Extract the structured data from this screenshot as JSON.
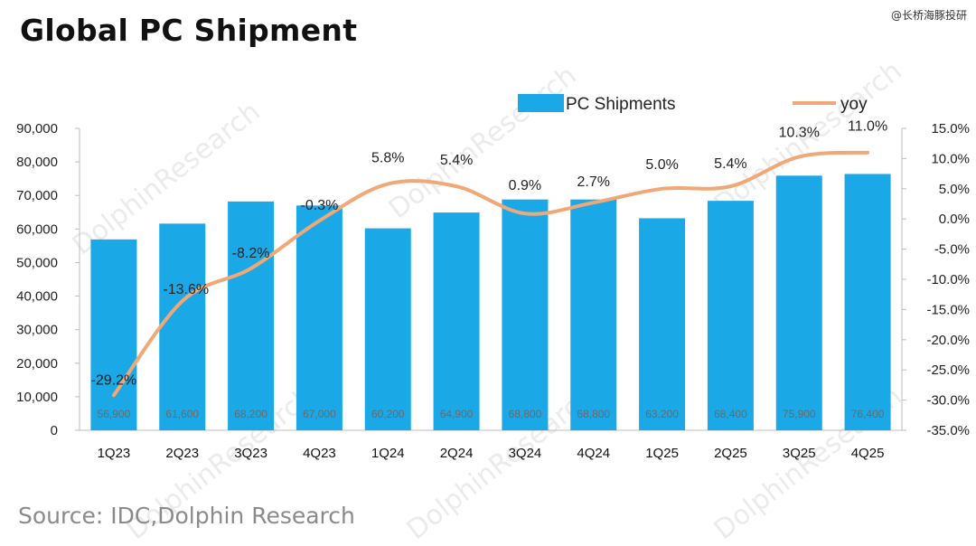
{
  "title": "Global PC Shipment",
  "attribution": "@长桥海豚投研",
  "source": "Source: IDC,Dolphin Research",
  "watermark": "DolphinResearch",
  "colors": {
    "bar": "#1ba8e6",
    "line": "#f0a877"
  },
  "chart_data": {
    "type": "bar",
    "categories": [
      "1Q23",
      "2Q23",
      "3Q23",
      "4Q23",
      "1Q24",
      "2Q24",
      "3Q24",
      "4Q24",
      "1Q25",
      "2Q25",
      "3Q25",
      "4Q25"
    ],
    "series": [
      {
        "name": "PC Shipments",
        "type": "bar",
        "axis": "left",
        "values": [
          56900,
          61600,
          68200,
          67000,
          60200,
          64900,
          68800,
          68800,
          63200,
          68400,
          75900,
          76400
        ],
        "labels": [
          "56,900",
          "61,600",
          "68,200",
          "67,000",
          "60,200",
          "64,900",
          "68,800",
          "68,800",
          "63,200",
          "68,400",
          "75,900",
          "76,400"
        ]
      },
      {
        "name": "yoy",
        "type": "line",
        "axis": "right",
        "values": [
          -29.2,
          -13.6,
          -8.2,
          -0.3,
          5.8,
          5.4,
          0.9,
          2.7,
          5.0,
          5.4,
          10.3,
          11.0
        ],
        "labels": [
          "-29.2%",
          "-13.6%",
          "-8.2%",
          "-0.3%",
          "5.8%",
          "5.4%",
          "0.9%",
          "2.7%",
          "5.0%",
          "5.4%",
          "10.3%",
          "11.0%"
        ]
      }
    ],
    "ylim_left": [
      0,
      90000
    ],
    "yticks_left": [
      "0",
      "10,000",
      "20,000",
      "30,000",
      "40,000",
      "50,000",
      "60,000",
      "70,000",
      "80,000",
      "90,000"
    ],
    "ylim_right": [
      -35,
      15
    ],
    "yticks_right": [
      "-35.0%",
      "-30.0%",
      "-25.0%",
      "-20.0%",
      "-15.0%",
      "-10.0%",
      "-5.0%",
      "0.0%",
      "5.0%",
      "10.0%",
      "15.0%"
    ],
    "legend": [
      "PC Shipments",
      "yoy"
    ],
    "legend_position": "top-right"
  }
}
